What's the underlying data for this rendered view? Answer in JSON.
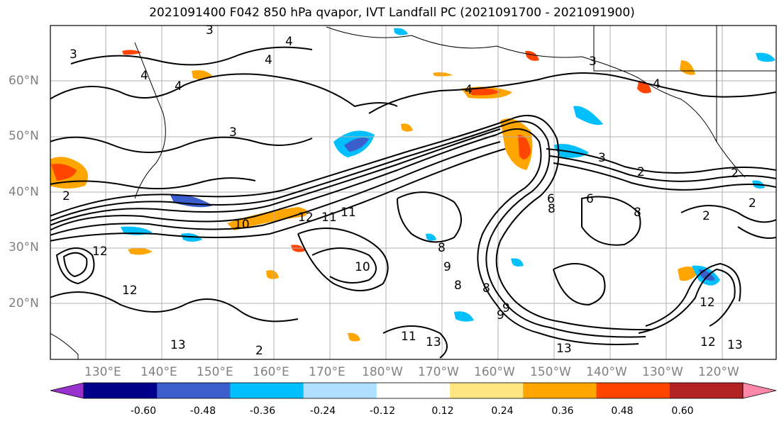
{
  "title": "2021091400 F042 850 hPa qvapor, IVT Landfall PC (2021091700 - 2021091900)",
  "map": {
    "lat_labels": [
      "60°N",
      "50°N",
      "40°N",
      "30°N",
      "20°N"
    ],
    "lon_labels": [
      "130°E",
      "140°E",
      "150°E",
      "160°E",
      "170°E",
      "180°W",
      "170°W",
      "160°W",
      "150°W",
      "140°W",
      "130°W",
      "120°W"
    ],
    "contour_labels": [
      "3",
      "4",
      "4",
      "4",
      "4",
      "3",
      "3",
      "4",
      "3",
      "2",
      "2",
      "2",
      "2",
      "12",
      "10",
      "11",
      "12",
      "11",
      "12",
      "10",
      "13",
      "13",
      "8",
      "8",
      "6",
      "8",
      "6",
      "8",
      "9",
      "8",
      "9",
      "12",
      "13",
      "9",
      "11",
      "13",
      "12",
      "2",
      "2",
      "3",
      "4"
    ],
    "colors": {
      "frame": "#000000",
      "grid": "#b0b0b0",
      "land_outline": "#000000",
      "contour": "#000000"
    }
  },
  "colorbar": {
    "ticks": [
      "-0.60",
      "-0.48",
      "-0.36",
      "-0.24",
      "-0.12",
      "0.12",
      "0.24",
      "0.36",
      "0.48",
      "0.60"
    ],
    "colors": [
      "#9932cc",
      "#00008b",
      "#3a5fcd",
      "#00bfff",
      "#b0e0ff",
      "#ffffff",
      "#ffe680",
      "#ffa500",
      "#ff4500",
      "#b22222",
      "#ff88aa"
    ],
    "under_color": "#9932cc",
    "over_color": "#ff88aa"
  }
}
